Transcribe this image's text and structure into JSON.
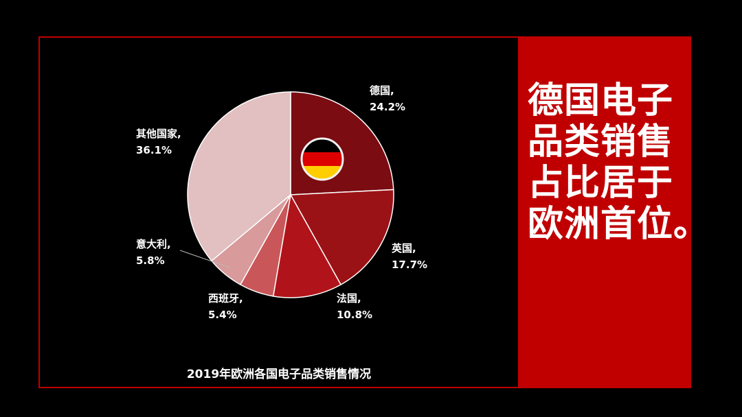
{
  "headline": {
    "lines": [
      "德国电子",
      "品类销售",
      "占比居于",
      "欧洲首位。"
    ]
  },
  "colors": {
    "frame": "#c00000",
    "panel": "#c00000",
    "background": "#000000"
  },
  "flag": {
    "icon": "germany-flag-icon",
    "stripes": [
      "#000000",
      "#dd0000",
      "#ffce00"
    ]
  },
  "chart_data": {
    "type": "pie",
    "title": "2019年欧洲各国电子品类销售情况",
    "unit": "%",
    "slices": [
      {
        "label": "德国,",
        "value": 24.2,
        "text": "24.2%",
        "color": "#7a0c12"
      },
      {
        "label": "英国,",
        "value": 17.7,
        "text": "17.7%",
        "color": "#9b1216"
      },
      {
        "label": "法国,",
        "value": 10.8,
        "text": "10.8%",
        "color": "#b0141a"
      },
      {
        "label": "西班牙,",
        "value": 5.4,
        "text": "5.4%",
        "color": "#c9575a"
      },
      {
        "label": "意大利,",
        "value": 5.8,
        "text": "5.8%",
        "color": "#d89a9b"
      },
      {
        "label": "其他国家,",
        "value": 36.1,
        "text": "36.1%",
        "color": "#e2bfc0"
      }
    ]
  }
}
